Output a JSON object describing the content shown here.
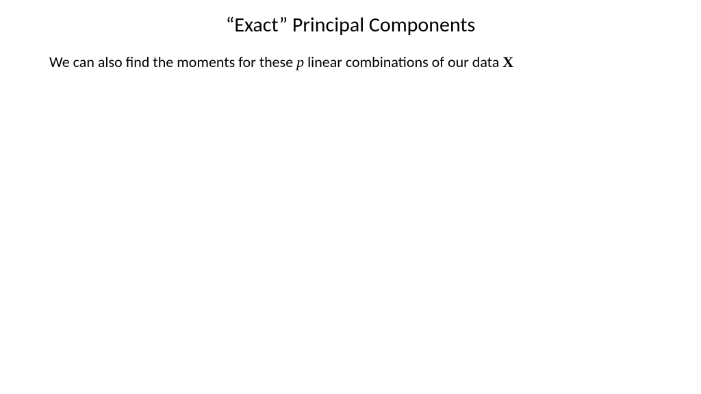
{
  "slide": {
    "title": "“Exact” Principal Components",
    "body": {
      "part1": "We can also find the moments for these ",
      "var_p": "p",
      "part2": " linear combinations of our data ",
      "var_X": "X"
    },
    "styling": {
      "background_color": "#ffffff",
      "text_color": "#000000",
      "title_fontsize": 30,
      "body_fontsize": 22,
      "font_family": "Calibri"
    }
  }
}
